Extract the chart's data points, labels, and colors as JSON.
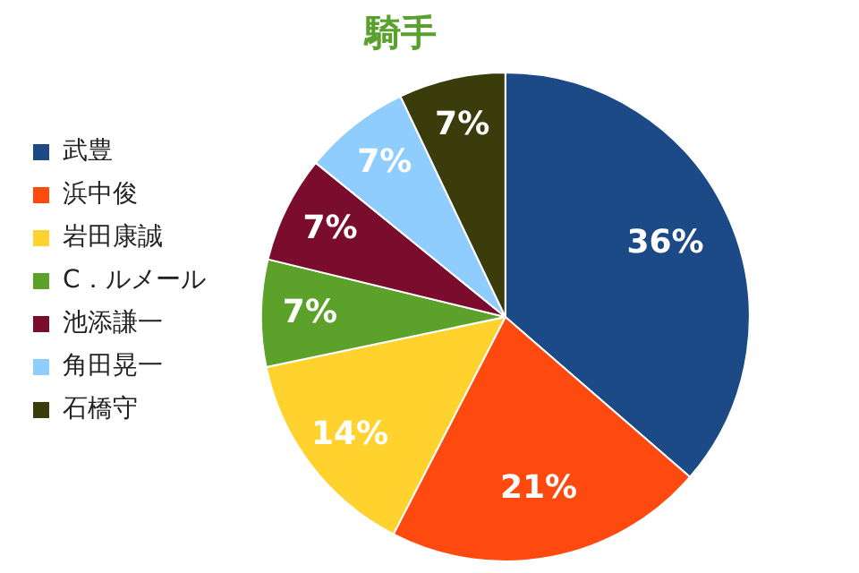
{
  "chart_data": {
    "type": "pie",
    "title": "騎手",
    "categories": [
      "武豊",
      "浜中俊",
      "岩田康誠",
      "C．ルメール",
      "池添謙一",
      "角田晃一",
      "石橋守"
    ],
    "values": [
      36,
      21,
      14,
      7,
      7,
      7,
      7
    ],
    "colors": [
      "#1c4a87",
      "#ff4a0f",
      "#ffd22e",
      "#5ca12a",
      "#7a0c2e",
      "#8fcdff",
      "#3a3c0c"
    ],
    "value_labels": [
      "36%",
      "21%",
      "14%",
      "7%",
      "7%",
      "7%",
      "7%"
    ],
    "legend": "left"
  }
}
